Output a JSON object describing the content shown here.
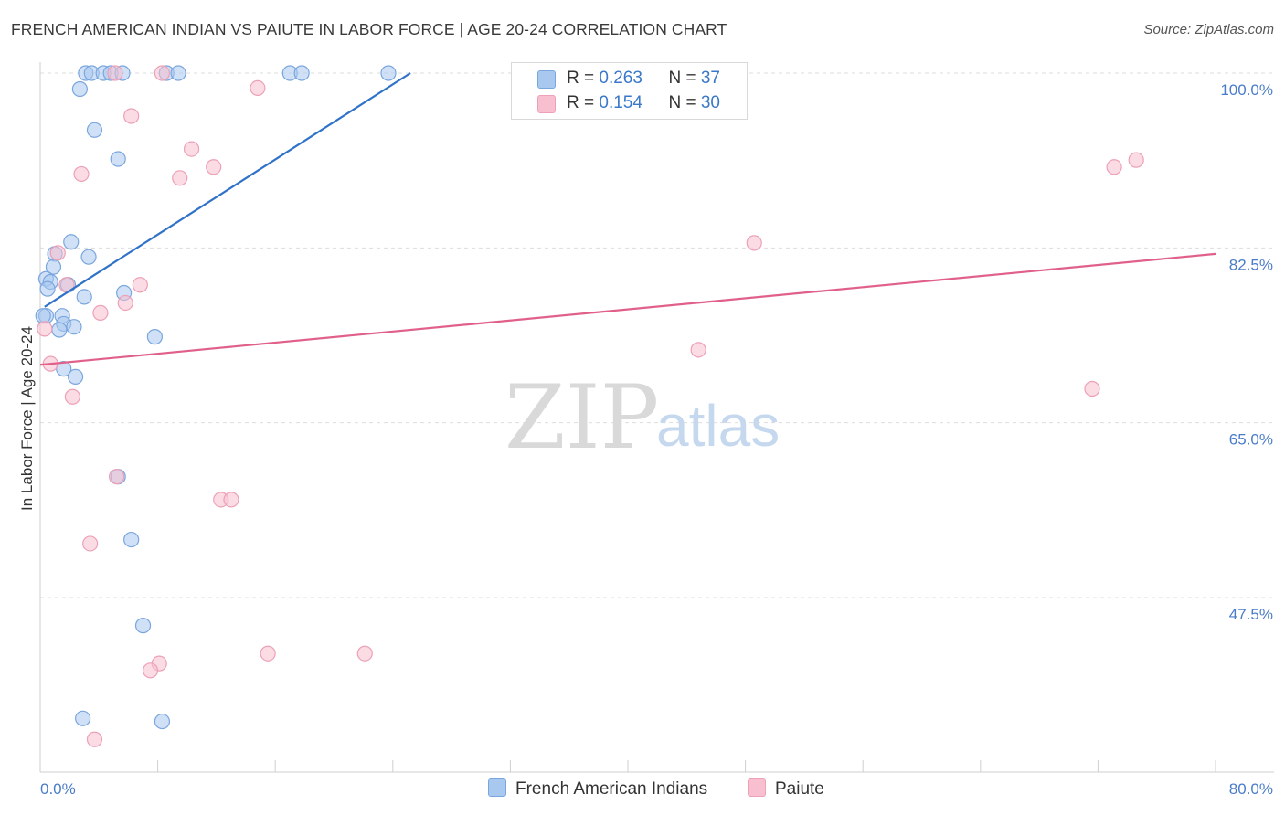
{
  "header": {
    "title": "FRENCH AMERICAN INDIAN VS PAIUTE IN LABOR FORCE | AGE 20-24 CORRELATION CHART",
    "source": "Source: ZipAtlas.com"
  },
  "watermark": {
    "zip": "ZIP",
    "atlas": "atlas"
  },
  "colors": {
    "blue_fill": "#a9c8f0",
    "blue_stroke": "#7aa6de",
    "blue_line": "#2f72c8",
    "pink_fill": "#f7bfd0",
    "pink_stroke": "#eda0b6",
    "pink_line": "#e0608a",
    "tick_text": "#4a7cc9",
    "grid": "#dddddd"
  },
  "legend": {
    "rows": [
      {
        "r_label": "R = ",
        "r_value": "0.263",
        "n_label": "N = ",
        "n_value": "37"
      },
      {
        "r_label": "R = ",
        "r_value": "0.154",
        "n_label": "N = ",
        "n_value": "30"
      }
    ]
  },
  "bottom_legend": {
    "series1": "French American Indians",
    "series2": "Paiute"
  },
  "chart_data": {
    "type": "scatter",
    "title": "FRENCH AMERICAN INDIAN VS PAIUTE IN LABOR FORCE | AGE 20-24 CORRELATION CHART",
    "xlabel": "",
    "ylabel": "In Labor Force | Age 20-24",
    "xlim": [
      0,
      80
    ],
    "ylim": [
      30,
      102
    ],
    "x_tick_labels": [
      "0.0%",
      "80.0%"
    ],
    "y_ticks": [
      47.5,
      65.0,
      82.5,
      100.0
    ],
    "y_tick_labels": [
      "47.5%",
      "65.0%",
      "82.5%",
      "100.0%"
    ],
    "series": [
      {
        "name": "French American Indians",
        "color": "#a9c8f0",
        "points": [
          [
            3.1,
            100
          ],
          [
            3.5,
            100
          ],
          [
            4.3,
            100
          ],
          [
            4.8,
            100
          ],
          [
            5.6,
            100
          ],
          [
            8.6,
            100
          ],
          [
            9.4,
            100
          ],
          [
            17.0,
            100
          ],
          [
            17.8,
            100
          ],
          [
            23.7,
            100
          ],
          [
            2.7,
            98.4
          ],
          [
            3.7,
            94.3
          ],
          [
            5.3,
            91.4
          ],
          [
            2.1,
            83.1
          ],
          [
            1.0,
            81.9
          ],
          [
            3.3,
            81.6
          ],
          [
            0.9,
            80.6
          ],
          [
            0.4,
            79.4
          ],
          [
            0.7,
            79.1
          ],
          [
            1.9,
            78.8
          ],
          [
            0.5,
            78.4
          ],
          [
            5.7,
            78.0
          ],
          [
            3.0,
            77.6
          ],
          [
            0.4,
            75.7
          ],
          [
            1.5,
            75.7
          ],
          [
            1.6,
            74.9
          ],
          [
            2.3,
            74.6
          ],
          [
            1.3,
            74.3
          ],
          [
            7.8,
            73.6
          ],
          [
            1.6,
            70.4
          ],
          [
            2.4,
            69.6
          ],
          [
            5.3,
            59.6
          ],
          [
            6.2,
            53.3
          ],
          [
            7.0,
            44.7
          ],
          [
            2.9,
            35.4
          ],
          [
            8.3,
            35.1
          ],
          [
            0.2,
            75.7
          ]
        ],
        "trend": {
          "x": [
            0.3,
            25.2
          ],
          "y": [
            76.6,
            100.0
          ]
        }
      },
      {
        "name": "Paiute",
        "color": "#f7bfd0",
        "points": [
          [
            5.1,
            100
          ],
          [
            8.3,
            100
          ],
          [
            14.8,
            98.5
          ],
          [
            6.2,
            95.7
          ],
          [
            10.3,
            92.4
          ],
          [
            11.8,
            90.6
          ],
          [
            2.8,
            89.9
          ],
          [
            9.5,
            89.5
          ],
          [
            73.1,
            90.6
          ],
          [
            74.6,
            91.3
          ],
          [
            48.6,
            83.0
          ],
          [
            1.2,
            82.0
          ],
          [
            1.8,
            78.8
          ],
          [
            6.8,
            78.8
          ],
          [
            5.8,
            77.0
          ],
          [
            4.1,
            76.0
          ],
          [
            0.3,
            74.4
          ],
          [
            44.8,
            72.3
          ],
          [
            0.7,
            70.9
          ],
          [
            2.2,
            67.6
          ],
          [
            71.6,
            68.4
          ],
          [
            5.2,
            59.6
          ],
          [
            12.3,
            57.3
          ],
          [
            13.0,
            57.3
          ],
          [
            3.4,
            52.9
          ],
          [
            8.1,
            40.9
          ],
          [
            7.5,
            40.2
          ],
          [
            15.5,
            41.9
          ],
          [
            22.1,
            41.9
          ],
          [
            3.7,
            33.3
          ]
        ],
        "trend": {
          "x": [
            0,
            80
          ],
          "y": [
            70.8,
            81.9
          ]
        }
      }
    ],
    "grid": "horizontal dashed",
    "legend_position": "top-center"
  }
}
